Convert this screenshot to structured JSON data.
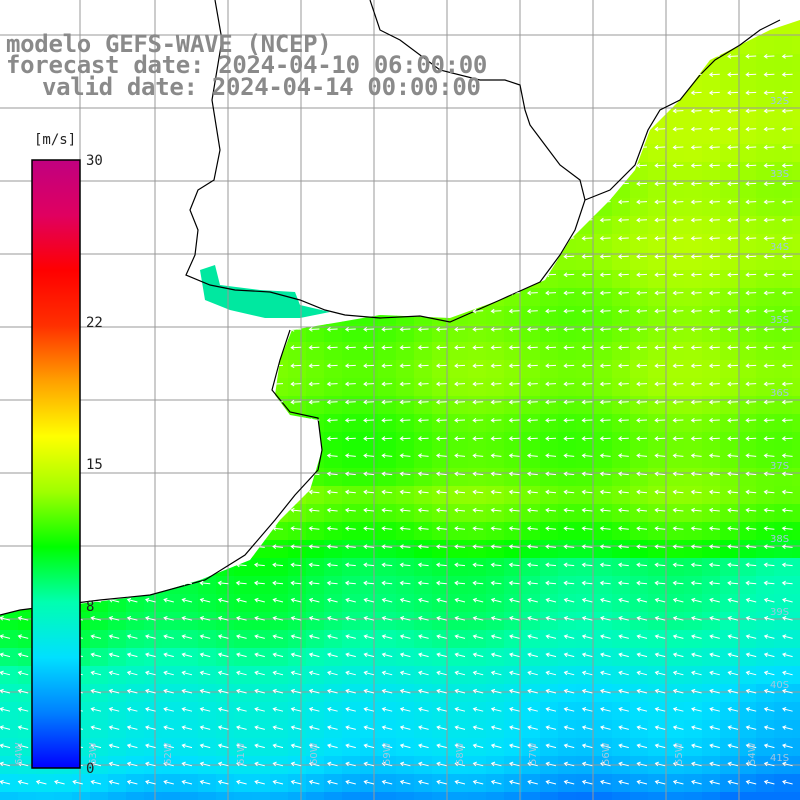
{
  "title": {
    "line1": "modelo GEFS-WAVE (NCEP)",
    "line2": "forecast date: 2024-04-10 06:00:00",
    "line3": "valid date: 2024-04-14 00:00:00"
  },
  "colorbar": {
    "unit_label": "[m/s]",
    "ticks": [
      {
        "value": 30,
        "label": "30"
      },
      {
        "value": 22,
        "label": "22"
      },
      {
        "value": 15,
        "label": "15"
      },
      {
        "value": 8,
        "label": "8"
      },
      {
        "value": 0,
        "label": "0"
      }
    ],
    "min": 0,
    "max": 30,
    "stops": [
      "#0000ff",
      "#0080ff",
      "#00e0ff",
      "#00ffb0",
      "#00ff00",
      "#a0ff00",
      "#ffff00",
      "#ffa000",
      "#ff3000",
      "#ff0000",
      "#e00060",
      "#c00080"
    ]
  },
  "lat_labels": [
    "32S",
    "33S",
    "34S",
    "35S",
    "36S",
    "37S",
    "38S",
    "39S",
    "40S",
    "41S"
  ],
  "lon_labels": [
    "64W",
    "63W",
    "62W",
    "61W",
    "60W",
    "59W",
    "58W",
    "57W",
    "56W",
    "55W",
    "54W"
  ],
  "wind_direction": "from east (arrows pointing west)"
}
